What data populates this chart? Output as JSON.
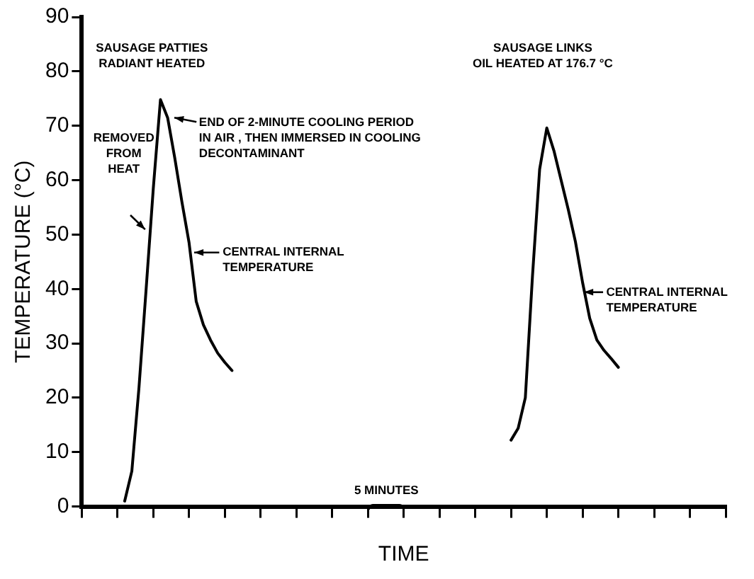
{
  "chart_data": {
    "type": "line",
    "xlabel": "TIME",
    "ylabel": "TEMPERATURE (°C)",
    "categories": [
      null,
      null,
      null,
      null,
      null,
      null,
      null,
      null,
      null,
      null,
      null,
      null,
      null,
      null,
      null,
      null,
      null,
      null,
      null,
      null,
      null,
      null,
      null,
      null,
      null,
      null,
      null,
      null,
      null,
      null,
      null,
      null,
      null,
      null,
      null,
      null,
      null,
      null,
      null,
      null,
      null,
      null,
      null,
      null,
      null,
      null,
      null,
      null,
      null,
      null,
      null,
      null,
      null,
      null,
      null,
      null,
      null,
      null,
      null,
      null,
      null,
      null,
      null,
      null,
      null,
      null,
      null,
      null,
      null,
      null,
      null,
      null,
      null,
      null,
      null,
      null,
      null,
      null,
      null,
      null,
      null,
      null,
      null,
      null,
      null,
      null,
      null,
      null,
      null,
      null,
      null
    ],
    "ylim": [
      0,
      90
    ],
    "yticks": [
      0,
      10,
      20,
      30,
      40,
      50,
      60,
      70,
      80,
      90
    ],
    "grid": false,
    "legend": false,
    "marker": "none",
    "line_style": "solid",
    "series": [
      {
        "color": "#000000",
        "values": [
          null,
          null,
          null,
          null,
          null,
          null,
          1,
          6.5,
          21.9,
          40,
          58.5,
          74.8,
          71.5,
          64.1,
          56,
          48.5,
          37.7,
          33.4,
          30.6,
          28.2,
          26.5,
          25,
          null,
          null,
          null,
          null,
          null,
          null,
          null,
          null,
          null,
          null,
          null,
          null,
          null,
          null,
          null,
          null,
          null,
          null,
          null,
          null,
          null,
          null,
          null,
          null,
          null,
          null,
          null,
          null,
          null,
          null,
          null,
          null,
          null,
          null,
          null,
          null,
          null,
          null,
          null,
          null,
          null,
          null,
          null,
          null,
          null,
          null,
          null,
          null,
          null,
          null,
          null,
          null,
          null,
          null,
          null,
          null,
          null,
          null,
          null,
          null,
          null,
          null,
          null,
          null,
          null,
          null,
          null,
          null,
          null
        ]
      },
      {
        "color": "#000000",
        "values": [
          null,
          null,
          null,
          null,
          null,
          null,
          null,
          null,
          null,
          null,
          null,
          null,
          null,
          null,
          null,
          null,
          null,
          null,
          null,
          null,
          null,
          null,
          null,
          null,
          null,
          null,
          null,
          null,
          null,
          null,
          null,
          null,
          null,
          null,
          null,
          null,
          null,
          null,
          null,
          null,
          null,
          null,
          null,
          null,
          null,
          null,
          null,
          null,
          null,
          null,
          null,
          null,
          null,
          null,
          null,
          null,
          null,
          null,
          null,
          null,
          12.2,
          14.4,
          20,
          42.4,
          62,
          69.6,
          65.4,
          60,
          54.6,
          48.7,
          41.2,
          34.6,
          30.6,
          28.7,
          27.2,
          25.6,
          null,
          null,
          null,
          null,
          null,
          null,
          null,
          null,
          null,
          null,
          null,
          null,
          null,
          null,
          null
        ]
      }
    ],
    "annotations": [
      "SAUSAGE PATTIES\nRADIANT HEATED",
      "SAUSAGE LINKS\nOIL HEATED AT 176.7 °C",
      "5 MINUTES",
      "REMOVED\nFROM\nHEAT",
      "END OF 2-MINUTE COOLING PERIOD\nIN AIR , THEN IMMERSED IN COOLING\nDECONTAMINANT",
      "CENTRAL INTERNAL\nTEMPERATURE",
      "CENTRAL INTERNAL\nTEMPERATURE"
    ]
  }
}
